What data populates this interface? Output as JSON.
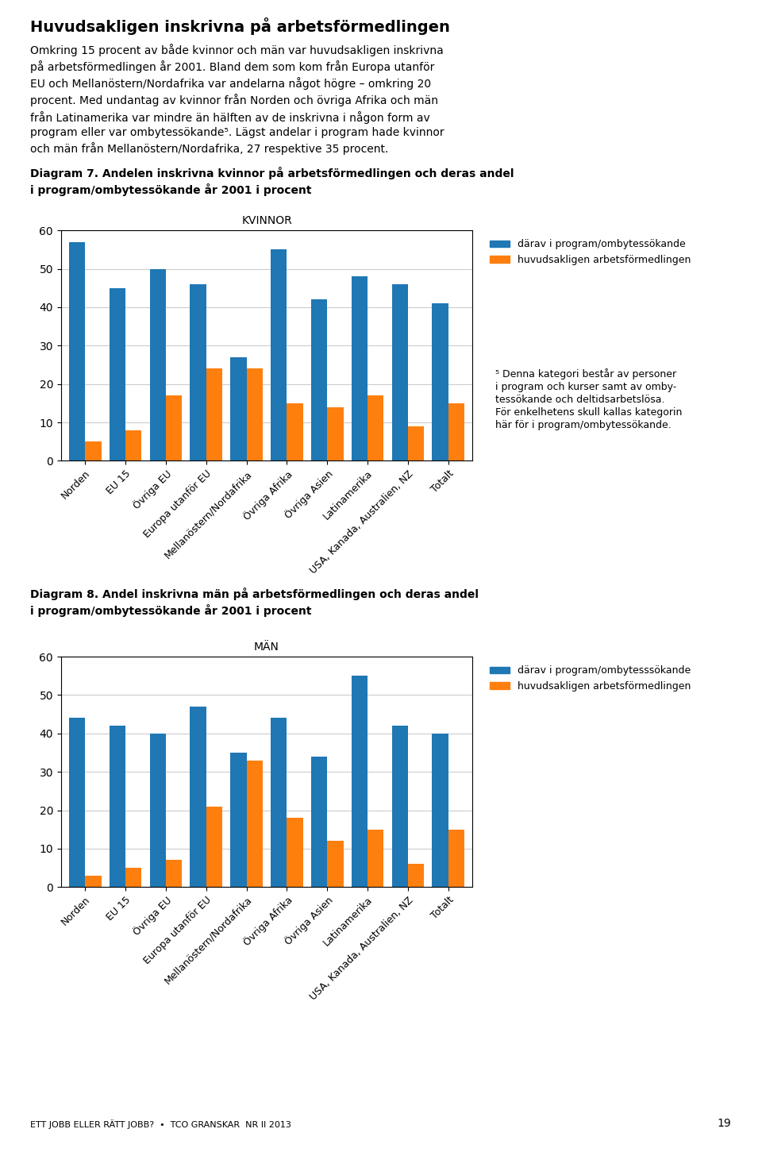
{
  "title": "Huvudsakligen inskrivna på arbetsförmedlingen",
  "subtitle": "Omkring 15 procent av både kvinnor och män var huvudsakligen inskrivna\npå arbetsförmedlingen år 2001. Bland dem som kom från Europa utanför\nEU och Mellanöstern/Nordafrika var andelarna något högre – omkring 20\nprocent. Med undantag av kvinnor från Norden och övriga Afrika och män\nfrån Latinamerika var mindre än hälften av de inskrivna i någon form av\nprogram eller var ombytessökande⁵. Lägst andelar i program hade kvinnor\noch män från Mellanöstern/Nordafrika, 27 respektive 35 procent.",
  "annotations": [
    "⁵ Denna kategori består av personer\ni program och kurser samt av omby-\ntessökande och deltidsarbetslösa.\nFör enkelhetens skull kallas kategorin\nhär för i program/ombytessökande.",
    "ETT JOBB ELLER RÄTT JOBB?  •  TCO GRANSKAR  NR II 2013",
    "19"
  ],
  "chart_data": [
    {
      "type": "bar",
      "title": "Diagram 7. Andelen inskrivna kvinnor på arbetsförmedlingen och deras andel\ni program/ombytessökande år 2001 i procent",
      "subtitle": "KVINNOR",
      "categories": [
        "Norden",
        "EU 15",
        "Övriga EU",
        "Europa utanför EU",
        "Mellanöstern/Nordafrika",
        "Övriga Afrika",
        "Övriga Asien",
        "Latinamerika",
        "USA, Kanada, Australien, NZ",
        "Totalt"
      ],
      "series": [
        {
          "name": "därav i program/ombytessökande",
          "values": [
            57,
            45,
            50,
            46,
            27,
            55,
            42,
            48,
            46,
            41
          ]
        },
        {
          "name": "huvudsakligen arbetsförmedlingen",
          "values": [
            5,
            8,
            17,
            24,
            24,
            15,
            14,
            17,
            9,
            15
          ]
        }
      ],
      "ylim": [
        0,
        60
      ],
      "yticks": [
        0,
        10,
        20,
        30,
        40,
        50,
        60
      ],
      "grid": true,
      "legend": "upper left"
    },
    {
      "type": "bar",
      "title": "Diagram 8. Andel inskrivna män på arbetsförmedlingen och deras andel\ni program/ombytessökande år 2001 i procent",
      "subtitle": "MÄN",
      "categories": [
        "Norden",
        "EU 15",
        "Övriga EU",
        "Europa utanför EU",
        "Mellanöstern/Nordafrika",
        "Övriga Afrika",
        "Övriga Asien",
        "Latinamerika",
        "USA, Kanada, Australien, NZ",
        "Totalt"
      ],
      "series": [
        {
          "name": "därav i program/ombytesssökande",
          "values": [
            44,
            42,
            40,
            47,
            35,
            44,
            34,
            55,
            42,
            40
          ]
        },
        {
          "name": "huvudsakligen arbetsförmedlingen",
          "values": [
            3,
            5,
            7,
            21,
            33,
            18,
            12,
            15,
            6,
            15
          ]
        }
      ],
      "ylim": [
        0,
        60
      ],
      "yticks": [
        0,
        10,
        20,
        30,
        40,
        50,
        60
      ],
      "grid": true,
      "legend": "upper left"
    }
  ]
}
